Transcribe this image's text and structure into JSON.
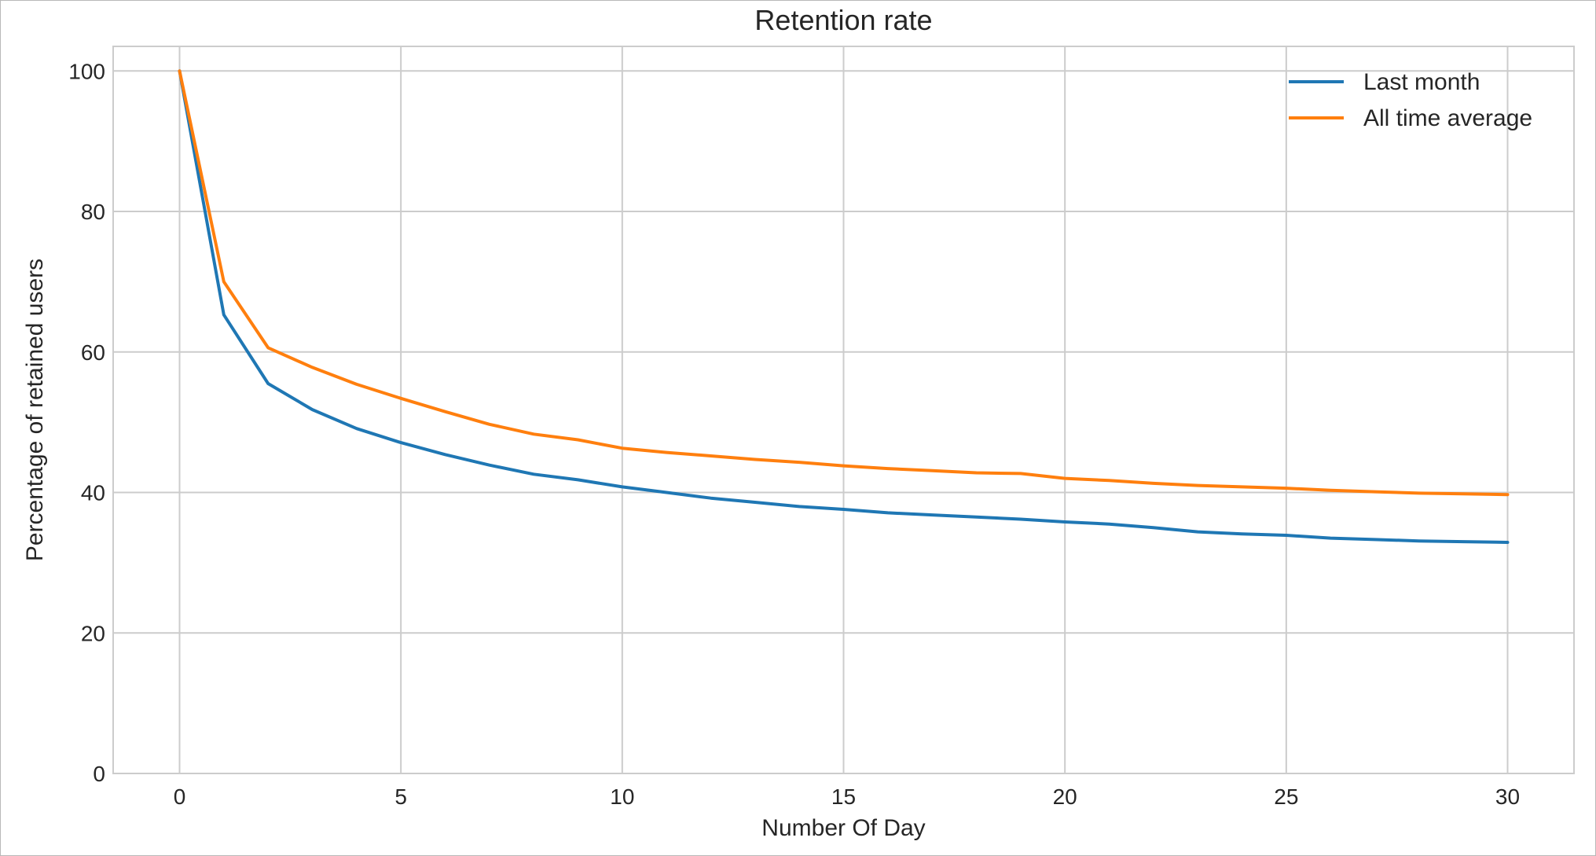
{
  "chart_data": {
    "type": "line",
    "title": "Retention rate",
    "xlabel": "Number Of Day",
    "ylabel": "Percentage of retained users",
    "xlim": [
      -1.5,
      31.5
    ],
    "ylim": [
      0,
      103.5
    ],
    "x_ticks": [
      0,
      5,
      10,
      15,
      20,
      25,
      30
    ],
    "y_ticks": [
      0,
      20,
      40,
      60,
      80,
      100
    ],
    "grid": true,
    "legend_position": "top-right",
    "x": [
      0,
      1,
      2,
      3,
      4,
      5,
      6,
      7,
      8,
      9,
      10,
      11,
      12,
      13,
      14,
      15,
      16,
      17,
      18,
      19,
      20,
      21,
      22,
      23,
      24,
      25,
      26,
      27,
      28,
      29,
      30
    ],
    "series": [
      {
        "name": "Last month",
        "color": "#1f77b4",
        "values": [
          100,
          65.3,
          55.5,
          51.8,
          49.1,
          47.1,
          45.4,
          43.9,
          42.6,
          41.8,
          40.8,
          40.0,
          39.2,
          38.6,
          38.0,
          37.6,
          37.1,
          36.8,
          36.5,
          36.2,
          35.8,
          35.5,
          35.0,
          34.4,
          34.1,
          33.9,
          33.5,
          33.3,
          33.1,
          33.0,
          32.9
        ]
      },
      {
        "name": "All time average",
        "color": "#ff7f0e",
        "values": [
          100,
          70.0,
          60.6,
          57.8,
          55.4,
          53.4,
          51.5,
          49.7,
          48.3,
          47.5,
          46.3,
          45.7,
          45.2,
          44.7,
          44.3,
          43.8,
          43.4,
          43.1,
          42.8,
          42.7,
          42.0,
          41.7,
          41.3,
          41.0,
          40.8,
          40.6,
          40.3,
          40.1,
          39.9,
          39.8,
          39.7
        ]
      }
    ]
  }
}
